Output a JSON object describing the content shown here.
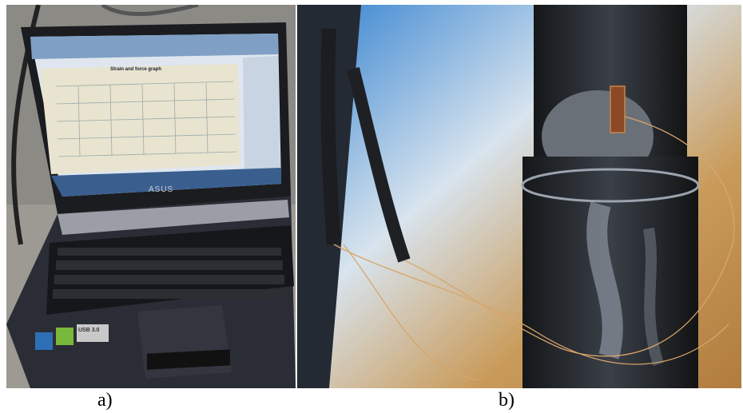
{
  "figure": {
    "panel_a": {
      "label": "a)",
      "laptop_brand": "ASUS",
      "screen_chart_title": "Strain and force graph",
      "keyboard_sticker": "USB 3.0"
    },
    "panel_b": {
      "label": "b)"
    }
  },
  "colors": {
    "background": "#ffffff",
    "laptop_body": "#2b2d36",
    "screen_panel": "#e8e4cf",
    "sky": "#3d8ad0",
    "pipe": "#1e2124",
    "wire": "#d9a56a"
  }
}
